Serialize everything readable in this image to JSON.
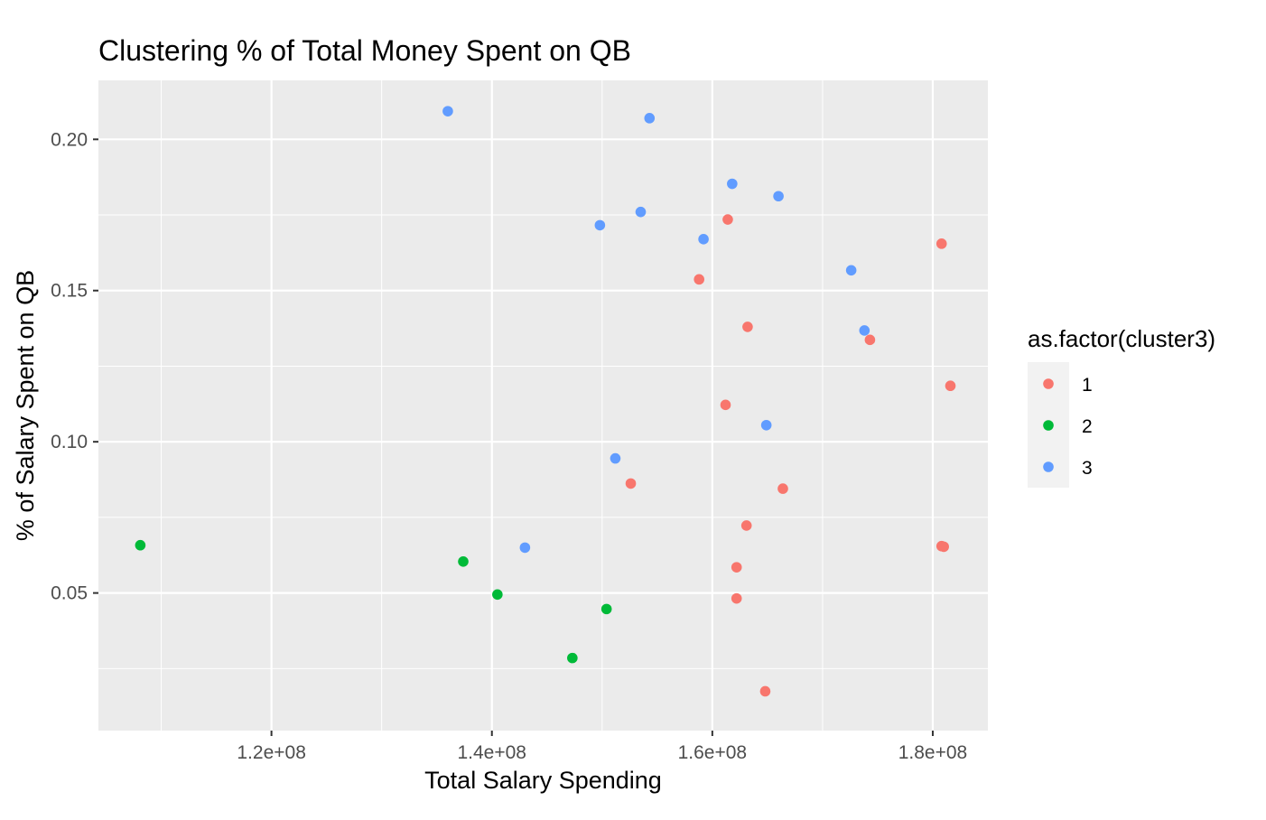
{
  "chart_data": {
    "type": "scatter",
    "title": "Clustering % of Total Money Spent on QB",
    "xlabel": "Total Salary Spending",
    "ylabel": "% of Salary Spent on QB",
    "xlim": [
      104300000,
      185000000
    ],
    "ylim": [
      0.0045,
      0.2195
    ],
    "x_ticks": [
      120000000,
      140000000,
      160000000,
      180000000
    ],
    "x_tick_labels": [
      "1.2e+08",
      "1.4e+08",
      "1.6e+08",
      "1.8e+08"
    ],
    "y_ticks": [
      0.05,
      0.1,
      0.15,
      0.2
    ],
    "y_tick_labels": [
      "0.05",
      "0.10",
      "0.15",
      "0.20"
    ],
    "grid": true,
    "panel_background": "#EBEBEB",
    "legend": {
      "title": "as.factor(cluster3)",
      "placement": "right",
      "entries": [
        "1",
        "2",
        "3"
      ]
    },
    "series": [
      {
        "name": "1",
        "color": "#F8766D",
        "points": [
          {
            "x": 161400000,
            "y": 0.1735
          },
          {
            "x": 180800000,
            "y": 0.1655
          },
          {
            "x": 158800000,
            "y": 0.1537
          },
          {
            "x": 163200000,
            "y": 0.138
          },
          {
            "x": 174300000,
            "y": 0.1337
          },
          {
            "x": 181600000,
            "y": 0.1185
          },
          {
            "x": 161200000,
            "y": 0.1122
          },
          {
            "x": 152600000,
            "y": 0.0862
          },
          {
            "x": 166400000,
            "y": 0.0845
          },
          {
            "x": 163100000,
            "y": 0.0723
          },
          {
            "x": 180800000,
            "y": 0.0655
          },
          {
            "x": 181000000,
            "y": 0.0653
          },
          {
            "x": 162200000,
            "y": 0.0585
          },
          {
            "x": 162200000,
            "y": 0.0482
          },
          {
            "x": 164800000,
            "y": 0.0175
          }
        ]
      },
      {
        "name": "2",
        "color": "#00BA38",
        "points": [
          {
            "x": 108100000,
            "y": 0.0658
          },
          {
            "x": 137400000,
            "y": 0.0604
          },
          {
            "x": 140500000,
            "y": 0.0495
          },
          {
            "x": 150400000,
            "y": 0.0447
          },
          {
            "x": 147300000,
            "y": 0.0285
          }
        ]
      },
      {
        "name": "3",
        "color": "#619CFF",
        "points": [
          {
            "x": 136000000,
            "y": 0.2093
          },
          {
            "x": 154300000,
            "y": 0.207
          },
          {
            "x": 161800000,
            "y": 0.1853
          },
          {
            "x": 166000000,
            "y": 0.1812
          },
          {
            "x": 153500000,
            "y": 0.176
          },
          {
            "x": 149800000,
            "y": 0.1716
          },
          {
            "x": 159200000,
            "y": 0.167
          },
          {
            "x": 172600000,
            "y": 0.1567
          },
          {
            "x": 173800000,
            "y": 0.1368
          },
          {
            "x": 164900000,
            "y": 0.1055
          },
          {
            "x": 151200000,
            "y": 0.0945
          },
          {
            "x": 143000000,
            "y": 0.065
          }
        ]
      }
    ]
  }
}
